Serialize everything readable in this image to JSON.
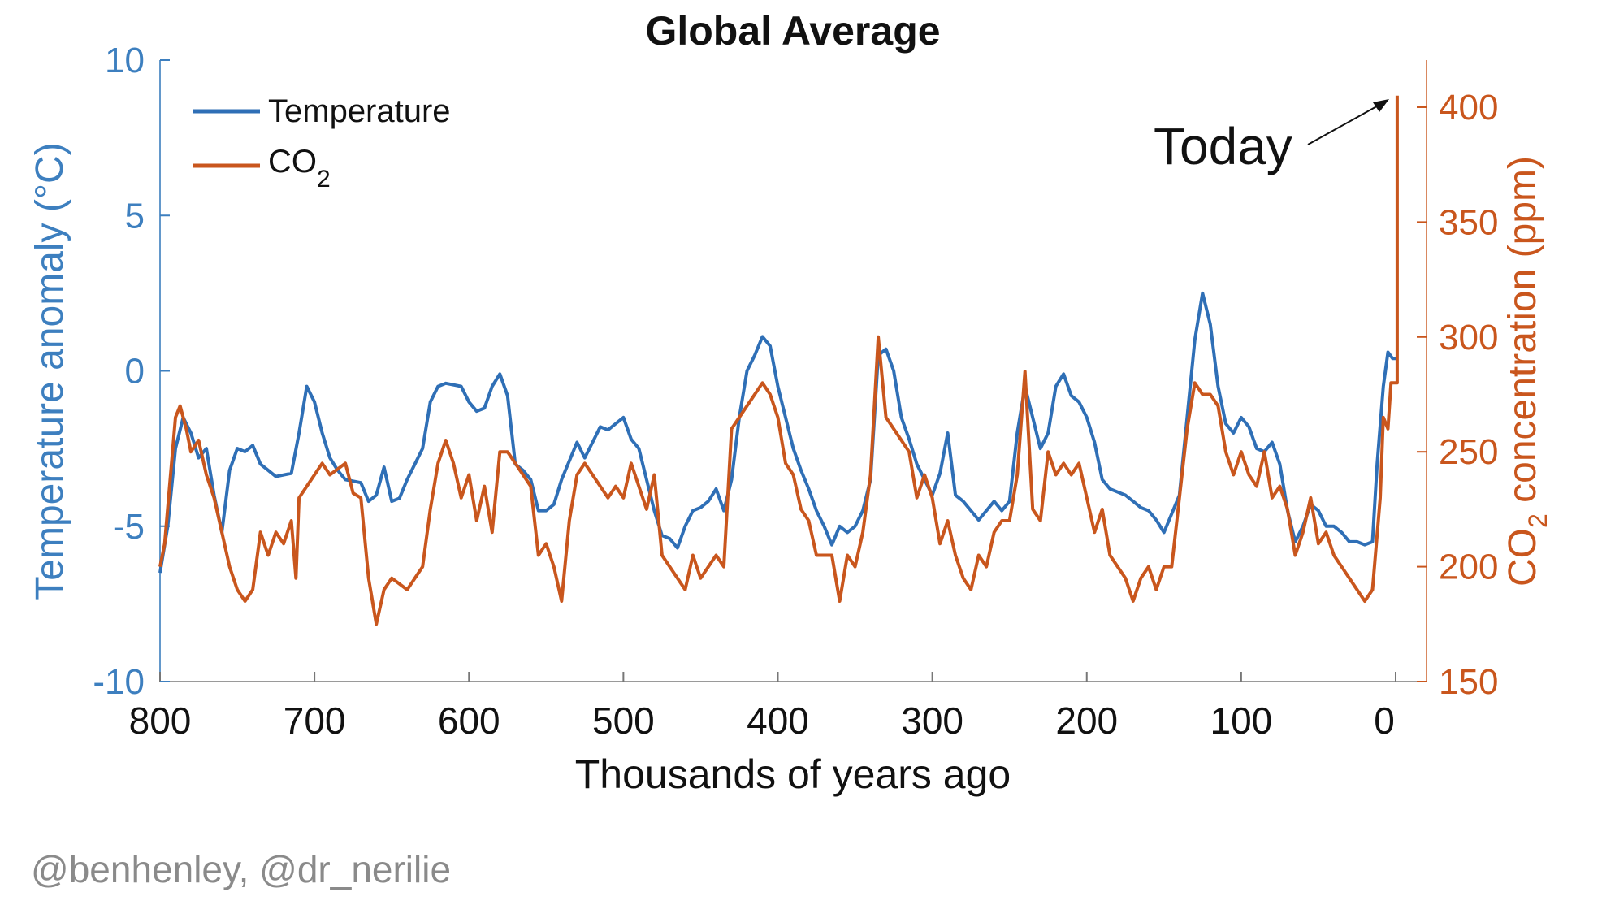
{
  "chart_data": {
    "type": "line",
    "title": "Global Average",
    "xlabel": "Thousands of years ago",
    "ylabel_left": "Temperature anomaly (°C)",
    "ylabel_right_prefix": "CO",
    "ylabel_right_sub": "2",
    "ylabel_right_suffix": " concentration (ppm)",
    "xlim": [
      800,
      0
    ],
    "ylim_left": [
      -10,
      10
    ],
    "ylim_right": [
      150,
      420.5
    ],
    "x_ticks": [
      800,
      700,
      600,
      500,
      400,
      300,
      200,
      100,
      0
    ],
    "y_ticks_left": [
      10,
      5,
      0,
      -5,
      -10
    ],
    "y_ticks_right": [
      400,
      350,
      300,
      250,
      200,
      150
    ],
    "grid": false,
    "legend_position": "top-left",
    "legend": [
      {
        "label": "Temperature",
        "sub": ""
      },
      {
        "label": "CO",
        "sub": "2"
      }
    ],
    "annotation": "Today",
    "credit": "@benhenley, @dr_nerilie",
    "colors": {
      "temperature": "#2f6fb6",
      "co2": "#c9561d",
      "axis_left": "#3d7fbf",
      "axis_right": "#c9561d"
    },
    "series": [
      {
        "name": "Temperature",
        "axis": "left",
        "x": [
          800,
          795,
          790,
          785,
          780,
          775,
          770,
          765,
          760,
          755,
          750,
          745,
          740,
          735,
          730,
          725,
          715,
          710,
          705,
          700,
          695,
          690,
          685,
          680,
          670,
          665,
          660,
          655,
          650,
          645,
          640,
          630,
          625,
          620,
          615,
          605,
          600,
          595,
          590,
          585,
          580,
          575,
          570,
          565,
          560,
          555,
          550,
          545,
          540,
          530,
          525,
          520,
          515,
          510,
          505,
          500,
          495,
          490,
          485,
          480,
          475,
          470,
          465,
          460,
          455,
          450,
          445,
          440,
          435,
          430,
          425,
          420,
          415,
          410,
          405,
          400,
          395,
          390,
          385,
          380,
          375,
          370,
          365,
          360,
          355,
          350,
          345,
          340,
          335,
          330,
          325,
          320,
          315,
          310,
          305,
          300,
          295,
          290,
          285,
          280,
          275,
          270,
          265,
          260,
          255,
          250,
          245,
          240,
          235,
          230,
          225,
          220,
          215,
          210,
          205,
          200,
          195,
          190,
          185,
          180,
          175,
          170,
          165,
          160,
          155,
          150,
          145,
          140,
          135,
          130,
          125,
          120,
          115,
          110,
          105,
          100,
          95,
          90,
          85,
          80,
          75,
          70,
          65,
          60,
          55,
          50,
          45,
          40,
          35,
          30,
          25,
          20,
          15,
          12,
          8,
          5,
          2,
          0
        ],
        "y": [
          -6.5,
          -5,
          -2.5,
          -1.5,
          -2,
          -2.8,
          -2.5,
          -4,
          -5.2,
          -3.2,
          -2.5,
          -2.6,
          -2.4,
          -3,
          -3.2,
          -3.4,
          -3.3,
          -2,
          -0.5,
          -1,
          -2,
          -2.8,
          -3.2,
          -3.5,
          -3.6,
          -4.2,
          -4,
          -3.1,
          -4.2,
          -4.1,
          -3.5,
          -2.5,
          -1,
          -0.5,
          -0.4,
          -0.5,
          -1,
          -1.3,
          -1.2,
          -0.5,
          -0.1,
          -0.8,
          -3,
          -3.2,
          -3.5,
          -4.5,
          -4.5,
          -4.3,
          -3.5,
          -2.3,
          -2.8,
          -2.3,
          -1.8,
          -1.9,
          -1.7,
          -1.5,
          -2.2,
          -2.5,
          -3.5,
          -4.5,
          -5.3,
          -5.4,
          -5.7,
          -5,
          -4.5,
          -4.4,
          -4.2,
          -3.8,
          -4.5,
          -3.5,
          -1.5,
          0,
          0.5,
          1.1,
          0.8,
          -0.5,
          -1.5,
          -2.5,
          -3.2,
          -3.8,
          -4.5,
          -5,
          -5.6,
          -5,
          -5.2,
          -5,
          -4.5,
          -3.5,
          0.5,
          0.7,
          0,
          -1.5,
          -2.2,
          -3,
          -3.5,
          -4,
          -3.3,
          -2,
          -4,
          -4.2,
          -4.5,
          -4.8,
          -4.5,
          -4.2,
          -4.5,
          -4.2,
          -2,
          -0.5,
          -1.5,
          -2.5,
          -2,
          -0.5,
          -0.1,
          -0.8,
          -1,
          -1.5,
          -2.3,
          -3.5,
          -3.8,
          -3.9,
          -4,
          -4.2,
          -4.4,
          -4.5,
          -4.8,
          -5.2,
          -4.6,
          -4,
          -1.5,
          1,
          2.5,
          1.5,
          -0.5,
          -1.7,
          -2,
          -1.5,
          -1.8,
          -2.5,
          -2.6,
          -2.3,
          -3,
          -4.5,
          -5.5,
          -5,
          -4.3,
          -4.5,
          -5,
          -5,
          -5.2,
          -5.5,
          -5.5,
          -5.6,
          -5.5,
          -3,
          -0.5,
          0.6,
          0.4,
          0.4
        ]
      },
      {
        "name": "CO2",
        "axis": "right",
        "x": [
          800,
          797,
          790,
          787,
          783,
          780,
          775,
          770,
          765,
          760,
          755,
          750,
          745,
          740,
          735,
          730,
          725,
          720,
          715,
          712,
          710,
          705,
          700,
          695,
          690,
          680,
          675,
          670,
          665,
          660,
          655,
          650,
          640,
          630,
          625,
          620,
          615,
          610,
          605,
          600,
          595,
          590,
          585,
          580,
          575,
          570,
          560,
          555,
          550,
          545,
          540,
          535,
          530,
          525,
          520,
          510,
          505,
          500,
          495,
          490,
          485,
          480,
          475,
          470,
          460,
          455,
          450,
          440,
          435,
          430,
          425,
          420,
          415,
          410,
          405,
          400,
          395,
          390,
          385,
          380,
          375,
          370,
          365,
          360,
          355,
          350,
          345,
          340,
          335,
          330,
          325,
          320,
          315,
          310,
          305,
          300,
          295,
          290,
          285,
          280,
          275,
          270,
          265,
          260,
          255,
          250,
          245,
          240,
          235,
          230,
          225,
          220,
          215,
          210,
          205,
          200,
          195,
          190,
          185,
          180,
          175,
          170,
          165,
          160,
          155,
          150,
          145,
          140,
          135,
          130,
          125,
          120,
          115,
          110,
          105,
          100,
          95,
          90,
          85,
          80,
          75,
          70,
          65,
          60,
          55,
          50,
          45,
          40,
          35,
          30,
          25,
          20,
          15,
          10,
          8,
          5,
          3,
          0,
          -1,
          -1
        ],
        "y": [
          200,
          210,
          265,
          270,
          260,
          250,
          255,
          240,
          230,
          215,
          200,
          190,
          185,
          190,
          215,
          205,
          215,
          210,
          220,
          195,
          230,
          235,
          240,
          245,
          240,
          245,
          232,
          230,
          195,
          175,
          190,
          195,
          190,
          200,
          225,
          245,
          255,
          245,
          230,
          240,
          220,
          235,
          215,
          250,
          250,
          245,
          235,
          205,
          210,
          200,
          185,
          220,
          240,
          245,
          240,
          230,
          235,
          230,
          245,
          235,
          225,
          240,
          205,
          200,
          190,
          205,
          195,
          205,
          200,
          260,
          265,
          270,
          275,
          280,
          275,
          265,
          245,
          240,
          225,
          220,
          205,
          205,
          205,
          185,
          205,
          200,
          215,
          240,
          300,
          265,
          260,
          255,
          250,
          230,
          240,
          230,
          210,
          220,
          205,
          195,
          190,
          205,
          200,
          215,
          220,
          220,
          240,
          285,
          225,
          220,
          250,
          240,
          245,
          240,
          245,
          230,
          215,
          225,
          205,
          200,
          195,
          185,
          195,
          200,
          190,
          200,
          200,
          230,
          260,
          280,
          275,
          275,
          270,
          250,
          240,
          250,
          240,
          235,
          250,
          230,
          235,
          225,
          205,
          215,
          230,
          210,
          215,
          205,
          200,
          195,
          190,
          185,
          190,
          230,
          265,
          260,
          280,
          280,
          280,
          405
        ]
      }
    ]
  }
}
